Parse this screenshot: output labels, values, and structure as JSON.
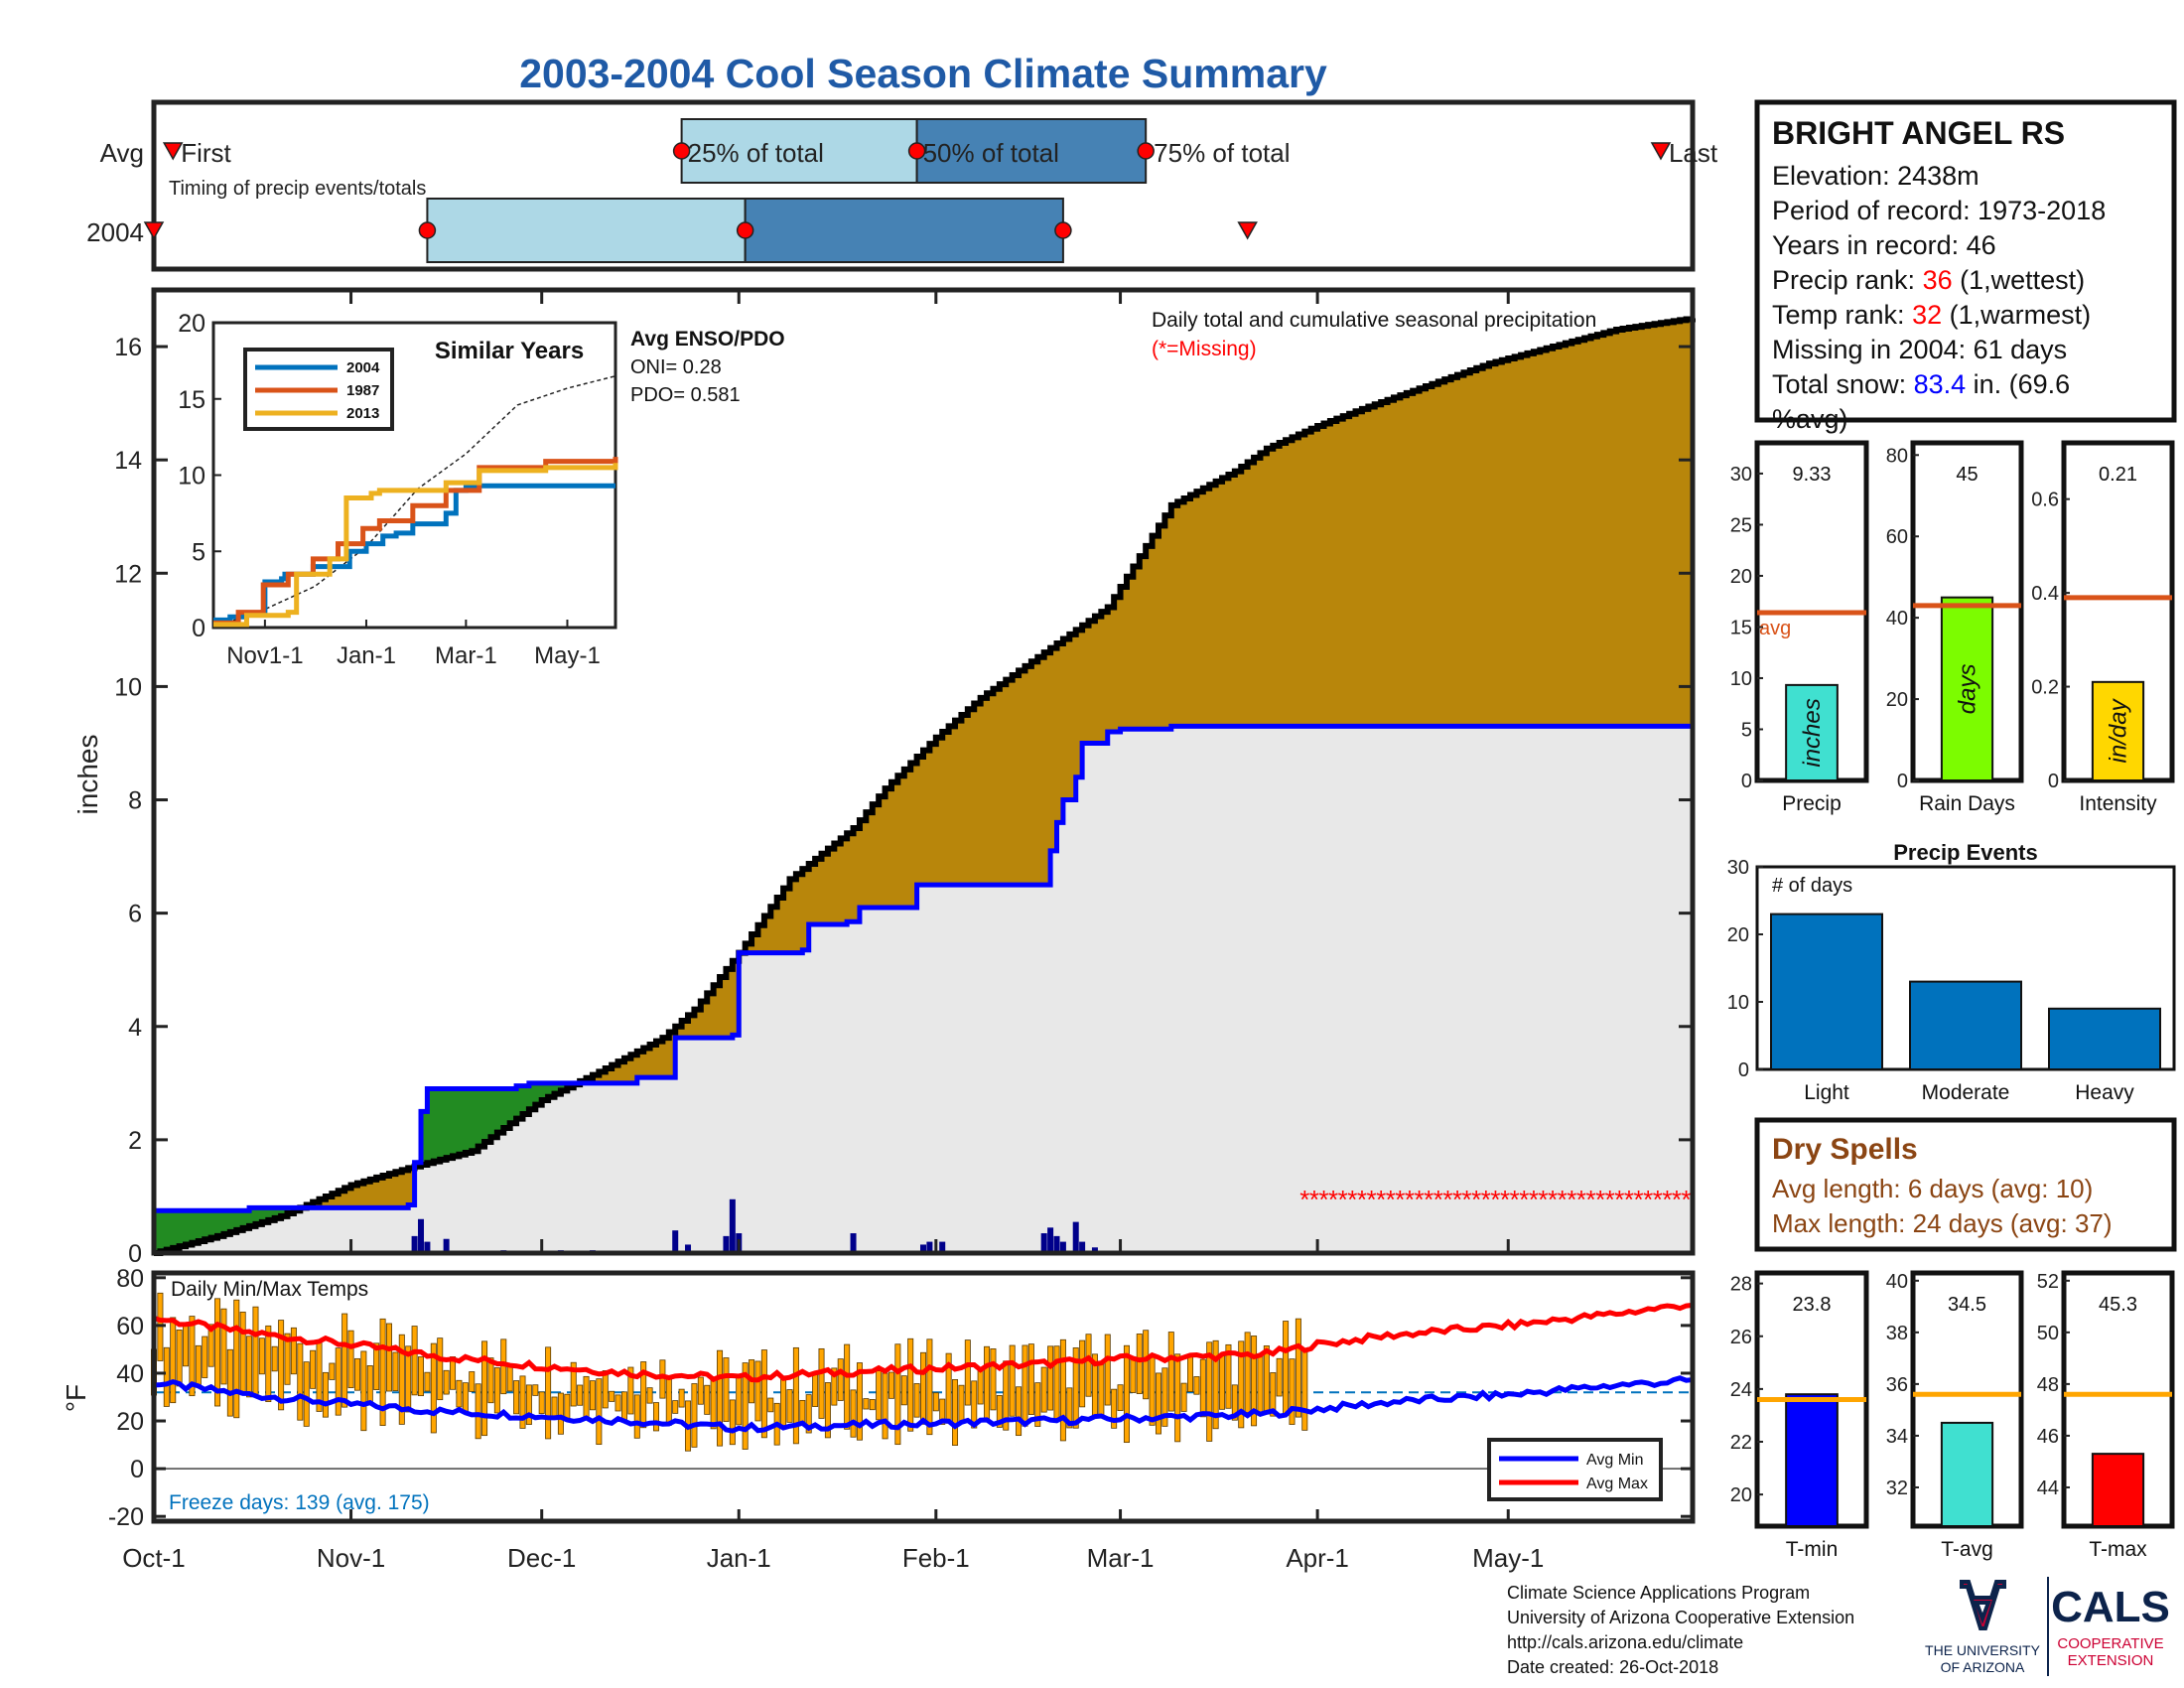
{
  "title": "2003-2004 Cool Season Climate Summary",
  "colors": {
    "title": "#1f5aa6",
    "avg_cum": "#000000",
    "obs_cum": "#0000ff",
    "above_fill": "#228b22",
    "below_fill": "#b8860b",
    "obs_fill": "#e8e8e8",
    "daily_bar": "#00008b",
    "q1": "#add8e6",
    "q2": "#4682b4",
    "marker": "#ff0000",
    "avg_min": "#0000ff",
    "avg_max": "#ff0000",
    "temp_bar": "#ffa500",
    "avg_line": "#d95319",
    "dry": "#8b4513",
    "missing": "#ff0000"
  },
  "timeline": {
    "row_labels": [
      "Avg",
      "2004"
    ],
    "first_label": "First",
    "last_label": "Last",
    "p25_label": "25% of total",
    "p50_label": "50% of total",
    "p75_label": "75% of total",
    "caption": "Timing of precip events/totals",
    "avg_marks": {
      "first": 3,
      "p25": 83,
      "p50": 120,
      "p75": 156,
      "last": 237
    },
    "obs_marks": {
      "first": 0,
      "p25": 43,
      "p50": 93,
      "p75": 143,
      "last": 172
    }
  },
  "station": {
    "name": "BRIGHT ANGEL RS",
    "elevation": "Elevation: 2438m",
    "period": "Period of record: 1973-2018",
    "years": "Years in record: 46",
    "precip_rank_label": "Precip rank: ",
    "precip_rank_value": "36",
    "precip_rank_note": " (1,wettest)",
    "temp_rank_label": "Temp rank: ",
    "temp_rank_value": "32",
    "temp_rank_note": " (1,warmest)",
    "missing": "Missing in 2004: 61 days",
    "snow_label": "Total snow: ",
    "snow_value": "83.4",
    "snow_note1": " in. (69.6",
    "snow_note2": "%avg)"
  },
  "chart_data": [
    {
      "id": "cumulative_precip",
      "type": "area",
      "ylabel": "inches",
      "ylim": [
        0,
        17
      ],
      "yticks": [
        0,
        2,
        4,
        6,
        8,
        10,
        12,
        14,
        16
      ],
      "x_tick_labels": [
        "Oct-1",
        "Nov-1",
        "Dec-1",
        "Jan-1",
        "Feb-1",
        "Mar-1",
        "Apr-1",
        "May-1"
      ],
      "x_tick_days": [
        0,
        31,
        61,
        92,
        123,
        152,
        183,
        213
      ],
      "x_range_days": [
        0,
        242
      ],
      "annotation": "Daily total and cumulative seasonal precipitation",
      "missing_note": "(*=Missing)",
      "avg_cumulative": {
        "day": [
          0,
          10,
          20,
          31,
          40,
          50,
          61,
          70,
          80,
          85,
          92,
          100,
          110,
          115,
          123,
          130,
          140,
          150,
          155,
          160,
          170,
          175,
          183,
          190,
          200,
          210,
          220,
          230,
          242
        ],
        "inches": [
          0,
          0.3,
          0.65,
          1.2,
          1.5,
          1.8,
          2.7,
          3.2,
          3.8,
          4.3,
          5.3,
          6.6,
          7.5,
          8.2,
          9.1,
          9.8,
          10.6,
          11.4,
          12.3,
          13.2,
          13.8,
          14.2,
          14.6,
          14.9,
          15.3,
          15.7,
          16.0,
          16.3,
          16.5
        ]
      },
      "obs_cumulative": {
        "day": [
          0,
          8,
          15,
          25,
          40,
          41,
          42,
          43,
          57,
          59,
          75,
          76,
          80,
          82,
          83,
          91,
          92,
          93,
          102,
          103,
          108,
          109,
          111,
          119,
          120,
          127,
          140,
          141,
          142,
          143,
          145,
          146,
          150,
          152,
          160,
          242
        ],
        "inches": [
          0.75,
          0.75,
          0.8,
          0.8,
          0.85,
          1.6,
          2.5,
          2.9,
          2.95,
          3.0,
          3.0,
          3.1,
          3.1,
          3.8,
          3.8,
          3.85,
          5.3,
          5.3,
          5.35,
          5.8,
          5.8,
          5.85,
          6.1,
          6.1,
          6.5,
          6.5,
          6.5,
          7.1,
          7.6,
          8.0,
          8.4,
          9.0,
          9.2,
          9.25,
          9.3,
          9.33
        ]
      },
      "daily_bars": {
        "day": [
          2,
          41,
          42,
          43,
          46,
          55,
          64,
          69,
          82,
          84,
          90,
          91,
          92,
          110,
          121,
          122,
          124,
          140,
          141,
          142,
          143,
          145,
          146,
          148
        ],
        "inches": [
          0.1,
          0.3,
          0.6,
          0.2,
          0.25,
          0.05,
          0.05,
          0.05,
          0.4,
          0.15,
          0.3,
          0.95,
          0.35,
          0.35,
          0.15,
          0.2,
          0.2,
          0.35,
          0.45,
          0.3,
          0.2,
          0.55,
          0.2,
          0.1
        ]
      },
      "missing_range_days": [
        181,
        242
      ]
    },
    {
      "id": "similar_years",
      "type": "line",
      "title": "Similar Years",
      "ylim": [
        0,
        20
      ],
      "yticks": [
        0,
        5,
        10,
        15,
        20
      ],
      "x_tick_labels": [
        "Nov1-1",
        "Jan-1",
        "Mar-1",
        "May-1"
      ],
      "x_tick_days": [
        31,
        92,
        152,
        213
      ],
      "enso_title": "Avg ENSO/PDO",
      "oni": "ONI= 0.28",
      "pdo": "PDO= 0.581",
      "series": [
        {
          "name": "2004",
          "color": "#0072bd",
          "day": [
            0,
            10,
            20,
            31,
            41,
            43,
            60,
            82,
            92,
            102,
            110,
            120,
            140,
            146,
            152,
            242
          ],
          "values": [
            0.5,
            0.7,
            0.9,
            3.0,
            3.2,
            3.5,
            4.0,
            5.0,
            5.5,
            6.0,
            6.2,
            6.8,
            7.5,
            9.0,
            9.3,
            9.3
          ]
        },
        {
          "name": "1987",
          "color": "#d95319",
          "day": [
            0,
            15,
            30,
            45,
            60,
            75,
            90,
            100,
            120,
            140,
            160,
            200,
            242
          ],
          "values": [
            0.3,
            1.0,
            2.8,
            3.5,
            4.5,
            5.5,
            6.5,
            7.0,
            8.0,
            9.0,
            10.5,
            10.9,
            11.2
          ]
        },
        {
          "name": "2013",
          "color": "#edb120",
          "day": [
            0,
            20,
            45,
            50,
            70,
            80,
            95,
            100,
            140,
            160,
            200,
            242
          ],
          "values": [
            0.2,
            0.8,
            1.0,
            3.5,
            4.5,
            8.5,
            8.8,
            9.0,
            9.5,
            10.3,
            10.5,
            10.8
          ]
        }
      ],
      "avg_line": {
        "day": [
          0,
          31,
          61,
          92,
          123,
          152,
          183,
          213,
          242
        ],
        "values": [
          0,
          1.2,
          2.7,
          5.3,
          9.1,
          11.4,
          14.6,
          15.7,
          16.5
        ]
      }
    },
    {
      "id": "precip_stats",
      "type": "bar",
      "panels": [
        {
          "label": "Precip",
          "unit": "inches",
          "value": 9.33,
          "value_label": "9.33",
          "avg": 16.4,
          "avg_label": "avg",
          "ylim": [
            0,
            33
          ],
          "yticks": [
            0,
            5,
            10,
            15,
            20,
            25,
            30
          ],
          "color": "#40e0d0"
        },
        {
          "label": "Rain Days",
          "unit": "days",
          "value": 45,
          "value_label": "45",
          "avg": 43,
          "ylim": [
            0,
            83
          ],
          "yticks": [
            0,
            20,
            40,
            60,
            80
          ],
          "color": "#7cfc00"
        },
        {
          "label": "Intensity",
          "unit": "in/day",
          "value": 0.21,
          "value_label": "0.21",
          "avg": 0.39,
          "ylim": [
            0,
            0.72
          ],
          "yticks": [
            0,
            0.2,
            0.4,
            0.6
          ],
          "ytick_labels": [
            "0",
            "0.2",
            "0.4",
            "0.6"
          ],
          "color": "#ffd700"
        }
      ]
    },
    {
      "id": "precip_events",
      "type": "bar",
      "title": "Precip Events",
      "ylabel_inside": "# of days",
      "categories": [
        "Light",
        "Moderate",
        "Heavy"
      ],
      "values": [
        23,
        13,
        9
      ],
      "ylim": [
        0,
        30
      ],
      "yticks": [
        0,
        10,
        20,
        30
      ],
      "color": "#0072bd"
    },
    {
      "id": "daily_temps",
      "type": "bar",
      "title": "Daily Min/Max Temps",
      "ylabel": "°F",
      "ylim": [
        -22,
        82
      ],
      "yticks": [
        -20,
        0,
        20,
        40,
        60,
        80
      ],
      "x_range_days": [
        0,
        242
      ],
      "freeze_line": 32,
      "freeze_text": "Freeze days: 139 (avg. 175)",
      "legend": [
        "Avg Min",
        "Avg Max"
      ],
      "avg_max": {
        "day": [
          0,
          15,
          31,
          45,
          61,
          75,
          92,
          105,
          123,
          140,
          152,
          165,
          175,
          183,
          195,
          213,
          230,
          242
        ],
        "values": [
          63,
          57,
          52,
          47,
          43,
          40,
          38,
          40,
          42,
          44,
          46,
          47,
          48,
          52,
          56,
          60,
          65,
          69
        ]
      },
      "avg_min": {
        "day": [
          0,
          15,
          31,
          45,
          61,
          75,
          92,
          105,
          123,
          140,
          152,
          165,
          175,
          183,
          195,
          213,
          230,
          242
        ],
        "values": [
          36,
          31,
          27,
          24,
          22,
          20,
          17,
          18,
          19,
          20,
          21,
          22,
          23,
          25,
          28,
          31,
          35,
          37
        ]
      },
      "obs_bar_day_range": [
        0,
        181
      ]
    },
    {
      "id": "temp_stats",
      "type": "bar",
      "panels": [
        {
          "label": "T-min",
          "value": 23.8,
          "value_label": "23.8",
          "avg": 23.6,
          "ylim": [
            18.8,
            28.4
          ],
          "yticks": [
            20,
            22,
            24,
            26,
            28
          ],
          "color": "#0000ff"
        },
        {
          "label": "T-avg",
          "value": 34.5,
          "value_label": "34.5",
          "avg": 35.6,
          "ylim": [
            30.5,
            40.3
          ],
          "yticks": [
            32,
            34,
            36,
            38,
            40
          ],
          "color": "#40e0d0"
        },
        {
          "label": "T-max",
          "value": 45.3,
          "value_label": "45.3",
          "avg": 47.6,
          "ylim": [
            42.5,
            52.3
          ],
          "yticks": [
            44,
            46,
            48,
            50,
            52
          ],
          "color": "#ff0000"
        }
      ]
    }
  ],
  "dry_spells": {
    "title": "Dry Spells",
    "avg_line": "Avg length: 6 days (avg: 10)",
    "max_line": "Max length: 24 days (avg: 37)"
  },
  "footer": {
    "line1": "Climate Science Applications Program",
    "line2": "University of Arizona Cooperative Extension",
    "line3": "http://cals.arizona.edu/climate",
    "line4": " Date created: 26-Oct-2018",
    "ua_line1": "THE UNIVERSITY",
    "ua_line2": "OF ARIZONA",
    "cals": "CALS",
    "cals_sub1": "COOPERATIVE",
    "cals_sub2": "EXTENSION"
  }
}
